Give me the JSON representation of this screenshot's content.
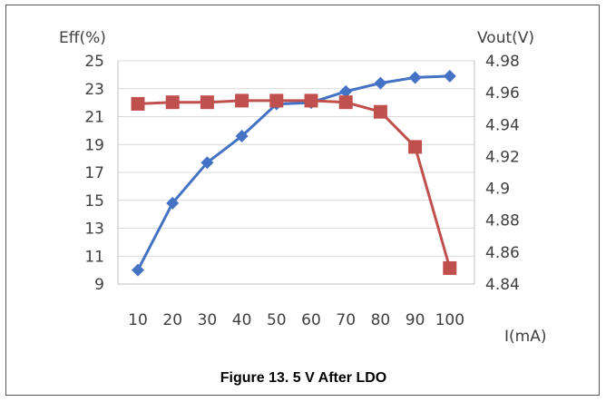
{
  "caption": "Figure 13. 5 V After LDO",
  "chart_data": {
    "type": "line",
    "x": [
      10,
      20,
      30,
      40,
      50,
      60,
      70,
      80,
      90,
      100
    ],
    "x_tick_labels": [
      "10",
      "20",
      "30",
      "40",
      "50",
      "60",
      "70",
      "80",
      "90",
      "100"
    ],
    "xlabel": "I(mA)",
    "ylabel_left": "Eff(%)",
    "ylabel_right": "Vout(V)",
    "ylim_left": [
      9,
      25
    ],
    "yticks_left": [
      "9",
      "11",
      "13",
      "15",
      "17",
      "19",
      "21",
      "23",
      "25"
    ],
    "ylim_right": [
      4.84,
      4.98
    ],
    "yticks_right": [
      "4.84",
      "4.86",
      "4.88",
      "4.9",
      "4.92",
      "4.94",
      "4.96",
      "4.98"
    ],
    "grid": true,
    "legend": "none",
    "series": [
      {
        "axis": "left",
        "marker": "diamond",
        "color": "#4472C4",
        "values": [
          10.0,
          14.8,
          17.7,
          19.6,
          21.9,
          22.0,
          22.8,
          23.4,
          23.8,
          23.9
        ]
      },
      {
        "axis": "right",
        "marker": "square",
        "color": "#C0504D",
        "values": [
          4.953,
          4.954,
          4.954,
          4.955,
          4.955,
          4.955,
          4.954,
          4.948,
          4.926,
          4.85
        ]
      }
    ]
  }
}
